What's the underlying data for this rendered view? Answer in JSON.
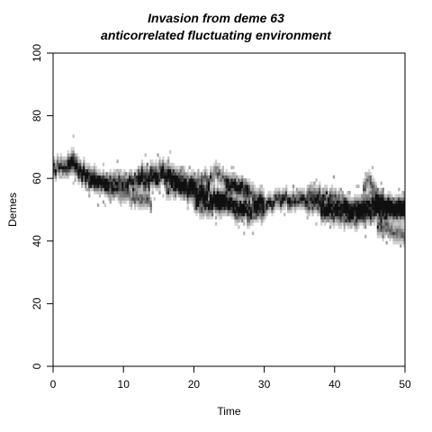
{
  "chart_data": {
    "type": "heatmap",
    "title": "Invasion from deme 63",
    "subtitle": "anticorrelated  fluctuating environment",
    "xlabel": "Time",
    "ylabel": "Demes",
    "xlim": [
      0,
      50
    ],
    "ylim": [
      0,
      100
    ],
    "x_ticks": [
      0,
      10,
      20,
      30,
      40,
      50
    ],
    "y_ticks": [
      0,
      20,
      40,
      60,
      80,
      100
    ],
    "x_tick_labels": [
      "0",
      "10",
      "20",
      "30",
      "40",
      "50"
    ],
    "y_tick_labels": [
      "0",
      "20",
      "40",
      "60",
      "80",
      "100"
    ],
    "grid": false,
    "colors": {
      "dense": "#111111",
      "sparse": "#d8d8d8",
      "frame": "#000000"
    },
    "trajectories": [
      {
        "points": [
          [
            0,
            63
          ],
          [
            2,
            63.5
          ],
          [
            3,
            63
          ],
          [
            4,
            61
          ],
          [
            5,
            59
          ],
          [
            6,
            58
          ],
          [
            8,
            58.5
          ],
          [
            10,
            58
          ],
          [
            12,
            59
          ],
          [
            14,
            59
          ],
          [
            16,
            60
          ],
          [
            17,
            59
          ],
          [
            18,
            57
          ],
          [
            20,
            56
          ],
          [
            22,
            55
          ],
          [
            24,
            53
          ],
          [
            26,
            51
          ],
          [
            28,
            50
          ],
          [
            30,
            51
          ],
          [
            32,
            53
          ],
          [
            34,
            53
          ],
          [
            36,
            52
          ],
          [
            38,
            50.5
          ],
          [
            40,
            50
          ],
          [
            42,
            49
          ],
          [
            44,
            49.5
          ],
          [
            46,
            50
          ],
          [
            48,
            50.5
          ],
          [
            50,
            50
          ]
        ]
      },
      {
        "points": [
          [
            2,
            65
          ],
          [
            3,
            66
          ],
          [
            4,
            62
          ],
          [
            6,
            60
          ],
          [
            8,
            56
          ],
          [
            10,
            55
          ],
          [
            12,
            53
          ],
          [
            14,
            52
          ]
        ]
      },
      {
        "points": [
          [
            12,
            61
          ],
          [
            14,
            61
          ],
          [
            16,
            62
          ],
          [
            17,
            61.5
          ],
          [
            18,
            60
          ],
          [
            20,
            58
          ],
          [
            22,
            59
          ],
          [
            23,
            61
          ],
          [
            24,
            60
          ],
          [
            26,
            57
          ],
          [
            28,
            54
          ],
          [
            30,
            53
          ]
        ]
      },
      {
        "points": [
          [
            16,
            57
          ],
          [
            18,
            56
          ],
          [
            20,
            54
          ],
          [
            22,
            52
          ],
          [
            24,
            51
          ],
          [
            26,
            49
          ],
          [
            28,
            48
          ],
          [
            30,
            49
          ]
        ]
      },
      {
        "points": [
          [
            20,
            52
          ],
          [
            22,
            50
          ],
          [
            24,
            53
          ],
          [
            25,
            58
          ],
          [
            26,
            56
          ],
          [
            27,
            58
          ],
          [
            28,
            55
          ]
        ]
      },
      {
        "points": [
          [
            36,
            55
          ],
          [
            38,
            54
          ],
          [
            40,
            53
          ],
          [
            42,
            51
          ],
          [
            44,
            50
          ],
          [
            45,
            53
          ],
          [
            46,
            52
          ],
          [
            48,
            51
          ],
          [
            50,
            51
          ]
        ]
      },
      {
        "points": [
          [
            38,
            48
          ],
          [
            40,
            47.5
          ],
          [
            42,
            47
          ],
          [
            44,
            47
          ],
          [
            46,
            48
          ],
          [
            48,
            49
          ],
          [
            50,
            48
          ]
        ]
      },
      {
        "points": [
          [
            44,
            56
          ],
          [
            45,
            59
          ],
          [
            46,
            55
          ],
          [
            47,
            52
          ]
        ]
      },
      {
        "points": [
          [
            46,
            45
          ],
          [
            48,
            43
          ],
          [
            49,
            42
          ],
          [
            50,
            41
          ]
        ]
      }
    ]
  }
}
